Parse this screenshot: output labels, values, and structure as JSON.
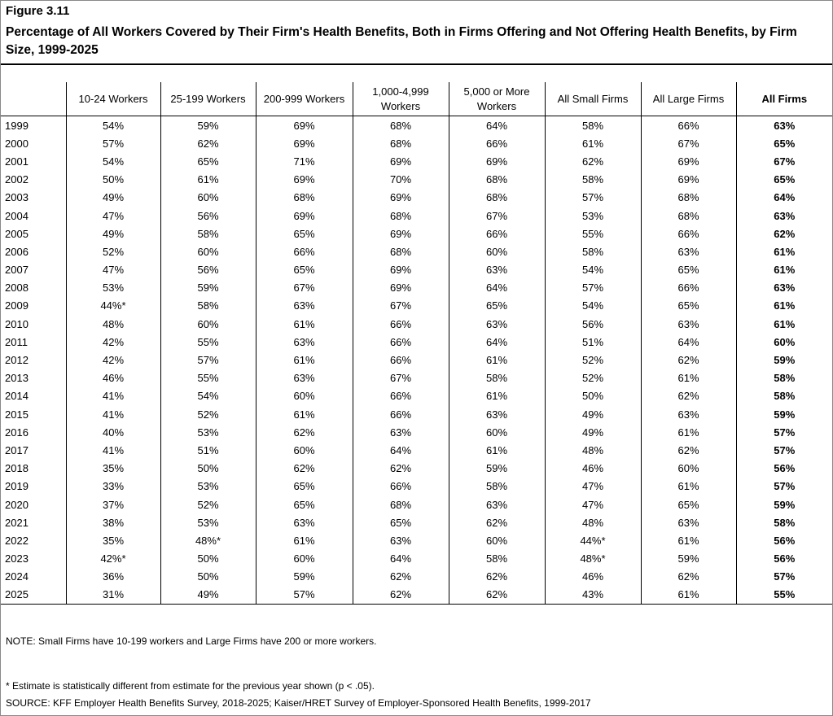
{
  "header": {
    "figure": "Figure 3.11",
    "title": "Percentage of All Workers Covered by Their Firm's Health Benefits, Both in Firms Offering and Not Offering Health Benefits, by Firm Size, 1999-2025"
  },
  "table": {
    "columns": [
      "10-24 Workers",
      "25-199 Workers",
      "200-999 Workers",
      "1,000-4,999 Workers",
      "5,000 or More Workers",
      "All Small Firms",
      "All Large Firms",
      "All Firms"
    ],
    "rows": [
      [
        "1999",
        "54%",
        "59%",
        "69%",
        "68%",
        "64%",
        "58%",
        "66%",
        "63%"
      ],
      [
        "2000",
        "57%",
        "62%",
        "69%",
        "68%",
        "66%",
        "61%",
        "67%",
        "65%"
      ],
      [
        "2001",
        "54%",
        "65%",
        "71%",
        "69%",
        "69%",
        "62%",
        "69%",
        "67%"
      ],
      [
        "2002",
        "50%",
        "61%",
        "69%",
        "70%",
        "68%",
        "58%",
        "69%",
        "65%"
      ],
      [
        "2003",
        "49%",
        "60%",
        "68%",
        "69%",
        "68%",
        "57%",
        "68%",
        "64%"
      ],
      [
        "2004",
        "47%",
        "56%",
        "69%",
        "68%",
        "67%",
        "53%",
        "68%",
        "63%"
      ],
      [
        "2005",
        "49%",
        "58%",
        "65%",
        "69%",
        "66%",
        "55%",
        "66%",
        "62%"
      ],
      [
        "2006",
        "52%",
        "60%",
        "66%",
        "68%",
        "60%",
        "58%",
        "63%",
        "61%"
      ],
      [
        "2007",
        "47%",
        "56%",
        "65%",
        "69%",
        "63%",
        "54%",
        "65%",
        "61%"
      ],
      [
        "2008",
        "53%",
        "59%",
        "67%",
        "69%",
        "64%",
        "57%",
        "66%",
        "63%"
      ],
      [
        "2009",
        "44%*",
        "58%",
        "63%",
        "67%",
        "65%",
        "54%",
        "65%",
        "61%"
      ],
      [
        "2010",
        "48%",
        "60%",
        "61%",
        "66%",
        "63%",
        "56%",
        "63%",
        "61%"
      ],
      [
        "2011",
        "42%",
        "55%",
        "63%",
        "66%",
        "64%",
        "51%",
        "64%",
        "60%"
      ],
      [
        "2012",
        "42%",
        "57%",
        "61%",
        "66%",
        "61%",
        "52%",
        "62%",
        "59%"
      ],
      [
        "2013",
        "46%",
        "55%",
        "63%",
        "67%",
        "58%",
        "52%",
        "61%",
        "58%"
      ],
      [
        "2014",
        "41%",
        "54%",
        "60%",
        "66%",
        "61%",
        "50%",
        "62%",
        "58%"
      ],
      [
        "2015",
        "41%",
        "52%",
        "61%",
        "66%",
        "63%",
        "49%",
        "63%",
        "59%"
      ],
      [
        "2016",
        "40%",
        "53%",
        "62%",
        "63%",
        "60%",
        "49%",
        "61%",
        "57%"
      ],
      [
        "2017",
        "41%",
        "51%",
        "60%",
        "64%",
        "61%",
        "48%",
        "62%",
        "57%"
      ],
      [
        "2018",
        "35%",
        "50%",
        "62%",
        "62%",
        "59%",
        "46%",
        "60%",
        "56%"
      ],
      [
        "2019",
        "33%",
        "53%",
        "65%",
        "66%",
        "58%",
        "47%",
        "61%",
        "57%"
      ],
      [
        "2020",
        "37%",
        "52%",
        "65%",
        "68%",
        "63%",
        "47%",
        "65%",
        "59%"
      ],
      [
        "2021",
        "38%",
        "53%",
        "63%",
        "65%",
        "62%",
        "48%",
        "63%",
        "58%"
      ],
      [
        "2022",
        "35%",
        "48%*",
        "61%",
        "63%",
        "60%",
        "44%*",
        "61%",
        "56%"
      ],
      [
        "2023",
        "42%*",
        "50%",
        "60%",
        "64%",
        "58%",
        "48%*",
        "59%",
        "56%"
      ],
      [
        "2024",
        "36%",
        "50%",
        "59%",
        "62%",
        "62%",
        "46%",
        "62%",
        "57%"
      ],
      [
        "2025",
        "31%",
        "49%",
        "57%",
        "62%",
        "62%",
        "43%",
        "61%",
        "55%"
      ]
    ]
  },
  "notes": {
    "note": "NOTE: Small Firms have 10-199 workers and Large Firms have 200 or more workers.",
    "footnote": "* Estimate is statistically different from estimate for the previous year shown (p < .05).",
    "source": "SOURCE: KFF Employer Health Benefits Survey, 2018-2025; Kaiser/HRET Survey of Employer-Sponsored Health Benefits, 1999-2017"
  }
}
